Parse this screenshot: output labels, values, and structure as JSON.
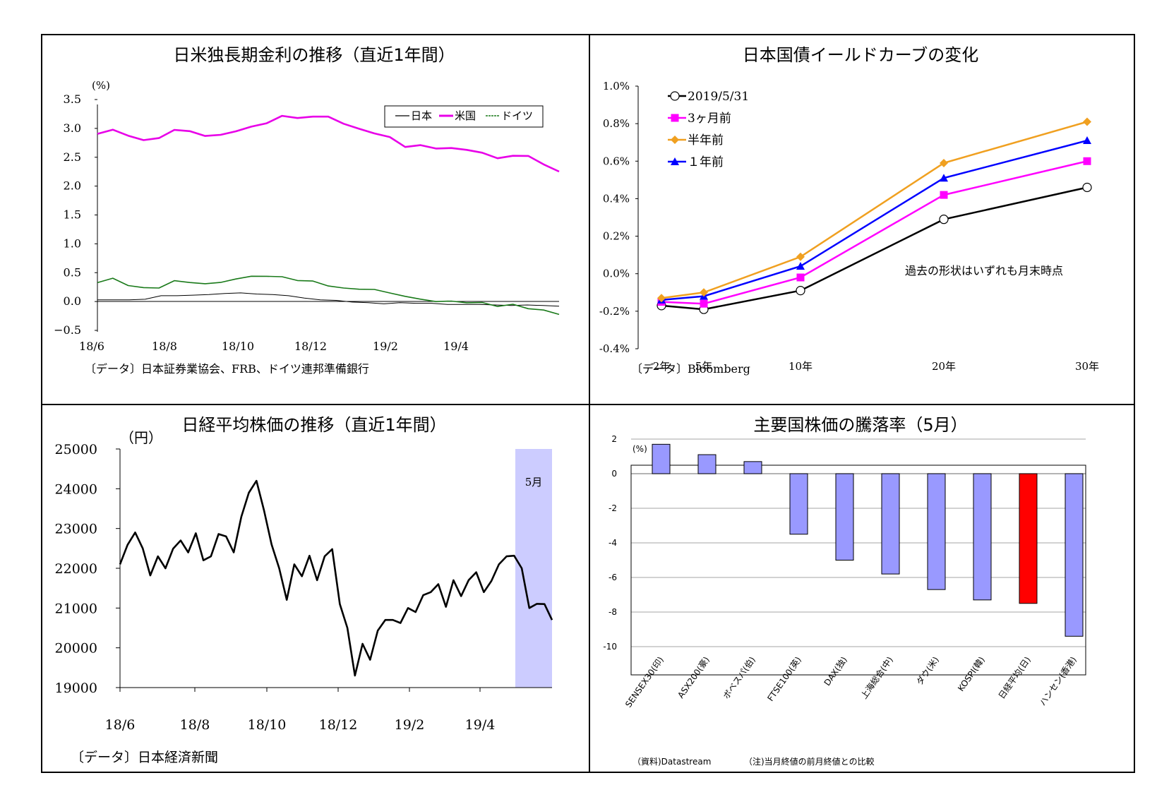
{
  "panels": {
    "rates": {
      "title": "日米独長期金利の推移（直近1年間）",
      "unit": "(%)",
      "source": "〔データ〕日本証券業協会、FRB、ドイツ連邦準備銀行"
    },
    "yield_curve": {
      "title": "日本国債イールドカーブの変化",
      "annotation": "過去の形状はいずれも月末時点",
      "source": "〔データ〕Bloomberg"
    },
    "nikkei": {
      "title": "日経平均株価の推移（直近1年間）",
      "unit": "（円）",
      "highlight_label": "5月",
      "source": "〔データ〕日本経済新聞"
    },
    "world": {
      "title": "主要国株価の騰落率（5月）",
      "unit": "(%)",
      "source": "（資料)Datastream",
      "note": "（注)当月終値の前月終値との比較"
    }
  },
  "colors": {
    "japan": "#000000",
    "us": "#e800e8",
    "germany": "#1a7a1a",
    "latest": "#000000",
    "m3": "#ff00ff",
    "m6": "#f0a020",
    "y1": "#0000ff",
    "bar_default": "#9999ff",
    "bar_highlight": "#ff0000",
    "highlight_fill": "#ccccff"
  },
  "chart_data": [
    {
      "type": "line",
      "title": "日米独長期金利の推移（直近1年間）",
      "ylabel": "(%)",
      "ylim": [
        -0.5,
        3.5
      ],
      "y_ticks": [
        "3.5",
        "3.0",
        "2.5",
        "2.0",
        "1.5",
        "1.0",
        "0.5",
        "0.0",
        "−0.5"
      ],
      "x_ticks": [
        "18/6",
        "18/8",
        "18/10",
        "18/12",
        "19/2",
        "19/4"
      ],
      "legend": [
        "日本",
        "米国",
        "ドイツ"
      ],
      "legend_position": "top-right",
      "series": [
        {
          "name": "日本",
          "values": [
            0.03,
            0.03,
            0.03,
            0.04,
            0.1,
            0.1,
            0.11,
            0.12,
            0.14,
            0.15,
            0.13,
            0.12,
            0.1,
            0.06,
            0.03,
            0.02,
            -0.01,
            -0.02,
            -0.04,
            -0.02,
            -0.03,
            -0.03,
            -0.05,
            -0.05,
            -0.05,
            -0.06,
            -0.07,
            -0.06,
            -0.07,
            -0.08
          ]
        },
        {
          "name": "米国",
          "values": [
            2.88,
            2.95,
            2.87,
            2.82,
            2.86,
            2.98,
            2.93,
            2.84,
            2.88,
            2.97,
            3.06,
            3.1,
            3.2,
            3.15,
            3.19,
            3.22,
            3.11,
            3.01,
            2.9,
            2.82,
            2.66,
            2.72,
            2.68,
            2.68,
            2.62,
            2.55,
            2.46,
            2.53,
            2.55,
            2.4,
            2.25
          ]
        },
        {
          "name": "ドイツ",
          "values": [
            0.3,
            0.4,
            0.3,
            0.27,
            0.24,
            0.34,
            0.3,
            0.3,
            0.35,
            0.42,
            0.45,
            0.42,
            0.4,
            0.35,
            0.37,
            0.3,
            0.25,
            0.2,
            0.18,
            0.13,
            0.1,
            0.07,
            0.02,
            0.0,
            -0.05,
            -0.04,
            -0.08,
            -0.02,
            -0.1,
            -0.15,
            -0.25
          ]
        }
      ]
    },
    {
      "type": "line",
      "title": "日本国債イールドカーブの変化",
      "ylim": [
        -0.4,
        1.0
      ],
      "y_ticks": [
        "1.0%",
        "0.8%",
        "0.6%",
        "0.4%",
        "0.2%",
        "0.0%",
        "-0.2%",
        "-0.4%"
      ],
      "categories": [
        "2年",
        "5年",
        "10年",
        "20年",
        "30年"
      ],
      "legend_position": "top-left",
      "series": [
        {
          "name": "2019/5/31",
          "values": [
            -0.17,
            -0.19,
            -0.09,
            0.29,
            0.46
          ]
        },
        {
          "name": "3ヶ月前",
          "values": [
            -0.15,
            -0.16,
            -0.02,
            0.42,
            0.6
          ]
        },
        {
          "name": "半年前",
          "values": [
            -0.13,
            -0.1,
            0.09,
            0.59,
            0.81
          ]
        },
        {
          "name": "１年前",
          "values": [
            -0.14,
            -0.12,
            0.04,
            0.51,
            0.71
          ]
        }
      ]
    },
    {
      "type": "line",
      "title": "日経平均株価の推移（直近1年間）",
      "ylabel": "（円）",
      "ylim": [
        19000,
        25000
      ],
      "y_ticks": [
        "25000",
        "24000",
        "23000",
        "22000",
        "21000",
        "20000",
        "19000"
      ],
      "x_ticks": [
        "18/6",
        "18/8",
        "18/10",
        "18/12",
        "19/2",
        "19/4"
      ],
      "series": [
        {
          "name": "",
          "values": [
            22100,
            22700,
            22900,
            22500,
            21700,
            22300,
            22000,
            22600,
            22700,
            22400,
            22800,
            22200,
            22300,
            22900,
            22800,
            22400,
            23300,
            23900,
            24200,
            23400,
            22600,
            22000,
            21300,
            22100,
            21800,
            22200,
            21700,
            22300,
            22600,
            21100,
            20500,
            19200,
            20100,
            19700,
            20500,
            20700,
            20700,
            20600,
            21000,
            20900,
            21300,
            21400,
            21600,
            21100,
            21700,
            21300,
            21600,
            21900,
            21400,
            21800,
            22100,
            22300,
            22200,
            22000,
            21000,
            21200,
            21100,
            20700
          ]
        }
      ],
      "highlight_band": "5月"
    },
    {
      "type": "bar",
      "title": "主要国株価の騰落率（5月）",
      "ylabel": "(%)",
      "ylim": [
        -10,
        2
      ],
      "y_ticks": [
        "2",
        "0",
        "-2",
        "-4",
        "-6",
        "-8",
        "-10"
      ],
      "categories": [
        "SENSEX30(印)",
        "ASX200(豪)",
        "ボベスパ(伯)",
        "FTSE100(英)",
        "DAX(独)",
        "上海総合(中)",
        "ダウ(米)",
        "KOSPI(韓)",
        "日経平均(日)",
        "ハンセン(香港)"
      ],
      "values": [
        1.7,
        1.1,
        0.7,
        -3.5,
        -5.0,
        -5.8,
        -6.7,
        -7.3,
        -7.5,
        -9.4
      ],
      "highlight_index": 8
    }
  ]
}
